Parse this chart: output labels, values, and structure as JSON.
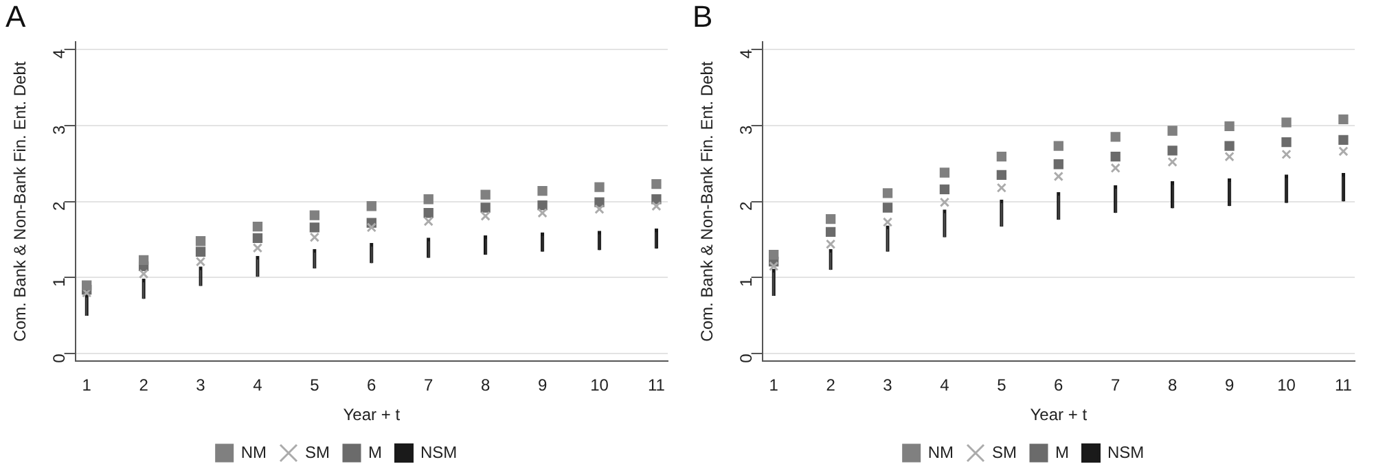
{
  "chart_data": [
    {
      "type": "scatter",
      "title": "A",
      "xlabel": "Year + t",
      "ylabel": "Com. Bank & Non-Bank Fin. Ent. Debt",
      "x": [
        1,
        2,
        3,
        4,
        5,
        6,
        7,
        8,
        9,
        10,
        11
      ],
      "xlim": [
        0.8,
        11.2
      ],
      "xticks": [
        1,
        2,
        3,
        4,
        5,
        6,
        7,
        8,
        9,
        10,
        11
      ],
      "ylim": [
        -0.1,
        4.1
      ],
      "yticks": [
        0,
        1,
        2,
        3,
        4
      ],
      "grid": "y",
      "legend": "bottom",
      "series": [
        {
          "name": "NM",
          "color": "#808080",
          "marker": "square",
          "values": [
            0.9,
            1.23,
            1.48,
            1.67,
            1.82,
            1.94,
            2.03,
            2.09,
            2.14,
            2.19,
            2.23
          ]
        },
        {
          "name": "SM",
          "color": "#ababab",
          "marker": "cross",
          "values": [
            0.8,
            1.05,
            1.21,
            1.39,
            1.53,
            1.66,
            1.74,
            1.81,
            1.85,
            1.9,
            1.94
          ]
        },
        {
          "name": "M",
          "color": "#6b6b6b",
          "marker": "square",
          "values": [
            0.84,
            1.15,
            1.34,
            1.52,
            1.66,
            1.72,
            1.85,
            1.92,
            1.95,
            1.99,
            2.03
          ]
        },
        {
          "name": "NSM",
          "type": "bar",
          "color": "#1a1a1a",
          "marker": "none",
          "base": [
            0.5,
            0.72,
            0.89,
            1.01,
            1.12,
            1.19,
            1.26,
            1.3,
            1.34,
            1.36,
            1.38
          ],
          "values": [
            0.28,
            0.26,
            0.25,
            0.27,
            0.25,
            0.26,
            0.26,
            0.25,
            0.25,
            0.25,
            0.26
          ]
        }
      ]
    },
    {
      "type": "scatter",
      "title": "B",
      "xlabel": "Year + t",
      "ylabel": "Com. Bank & Non-Bank Fin. Ent. Debt",
      "x": [
        1,
        2,
        3,
        4,
        5,
        6,
        7,
        8,
        9,
        10,
        11
      ],
      "xlim": [
        0.8,
        11.2
      ],
      "xticks": [
        1,
        2,
        3,
        4,
        5,
        6,
        7,
        8,
        9,
        10,
        11
      ],
      "ylim": [
        -0.1,
        4.1
      ],
      "yticks": [
        0,
        1,
        2,
        3,
        4
      ],
      "grid": "y",
      "legend": "bottom",
      "series": [
        {
          "name": "NM",
          "color": "#808080",
          "marker": "square",
          "values": [
            1.3,
            1.77,
            2.11,
            2.38,
            2.59,
            2.73,
            2.85,
            2.93,
            2.99,
            3.04,
            3.08
          ]
        },
        {
          "name": "SM",
          "color": "#ababab",
          "marker": "cross",
          "values": [
            1.15,
            1.44,
            1.73,
            1.99,
            2.18,
            2.33,
            2.44,
            2.52,
            2.59,
            2.62,
            2.66
          ]
        },
        {
          "name": "M",
          "color": "#6b6b6b",
          "marker": "square",
          "values": [
            1.21,
            1.6,
            1.92,
            2.16,
            2.35,
            2.49,
            2.59,
            2.67,
            2.73,
            2.78,
            2.81
          ]
        },
        {
          "name": "NSM",
          "type": "bar",
          "color": "#1a1a1a",
          "marker": "none",
          "base": [
            0.76,
            1.1,
            1.34,
            1.53,
            1.67,
            1.76,
            1.85,
            1.91,
            1.94,
            1.98,
            2.0
          ],
          "values": [
            0.35,
            0.27,
            0.34,
            0.36,
            0.35,
            0.36,
            0.36,
            0.35,
            0.36,
            0.37,
            0.37
          ]
        }
      ]
    }
  ]
}
